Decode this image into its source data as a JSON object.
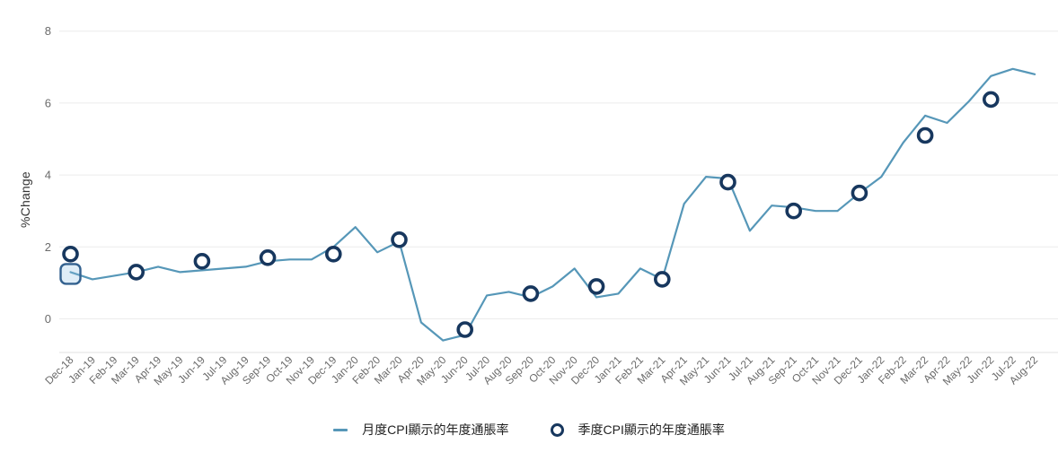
{
  "chart_data": {
    "type": "line",
    "title": "",
    "xlabel": "",
    "ylabel": "%Change",
    "yticks": [
      0,
      2,
      4,
      6,
      8
    ],
    "ylim": [
      -1.1,
      8.6
    ],
    "grid": "horizontal",
    "legend_position": "bottom-center",
    "categories": [
      "Dec-18",
      "Jan-19",
      "Feb-19",
      "Mar-19",
      "Apr-19",
      "May-19",
      "Jun-19",
      "Jul-19",
      "Aug-19",
      "Sep-19",
      "Oct-19",
      "Nov-19",
      "Dec-19",
      "Jan-20",
      "Feb-20",
      "Mar-20",
      "Apr-20",
      "May-20",
      "Jun-20",
      "Jul-20",
      "Aug-20",
      "Sep-20",
      "Oct-20",
      "Nov-20",
      "Dec-20",
      "Jan-21",
      "Feb-21",
      "Mar-21",
      "Apr-21",
      "May-21",
      "Jun-21",
      "Jul-21",
      "Aug-21",
      "Sep-21",
      "Oct-21",
      "Nov-21",
      "Dec-21",
      "Jan-22",
      "Feb-22",
      "Mar-22",
      "Apr-22",
      "May-22",
      "Jun-22",
      "Jul-22",
      "Aug-22"
    ],
    "series": [
      {
        "name": "月度CPI顯示的年度通脹率",
        "type": "line",
        "color": "#5697b8",
        "values": [
          1.3,
          1.1,
          1.2,
          1.3,
          1.45,
          1.3,
          1.35,
          1.4,
          1.45,
          1.6,
          1.65,
          1.65,
          2.0,
          2.55,
          1.85,
          2.15,
          -0.1,
          -0.6,
          -0.45,
          0.65,
          0.75,
          0.6,
          0.9,
          1.4,
          0.6,
          0.7,
          1.4,
          1.1,
          3.2,
          3.95,
          3.9,
          2.45,
          3.15,
          3.1,
          3.0,
          3.0,
          3.5,
          3.95,
          4.9,
          5.65,
          5.45,
          6.05,
          6.75,
          6.95,
          6.8
        ]
      },
      {
        "name": "季度CPI顯示的年度通脹率",
        "type": "scatter",
        "marker": "circle-outline",
        "color": "#17375e",
        "points": [
          {
            "x": "Dec-18",
            "y": 1.8
          },
          {
            "x": "Mar-19",
            "y": 1.3
          },
          {
            "x": "Jun-19",
            "y": 1.6
          },
          {
            "x": "Sep-19",
            "y": 1.7
          },
          {
            "x": "Dec-19",
            "y": 1.8
          },
          {
            "x": "Mar-20",
            "y": 2.2
          },
          {
            "x": "Jun-20",
            "y": -0.3
          },
          {
            "x": "Sep-20",
            "y": 0.7
          },
          {
            "x": "Dec-20",
            "y": 0.9
          },
          {
            "x": "Mar-21",
            "y": 1.1
          },
          {
            "x": "Jun-21",
            "y": 3.8
          },
          {
            "x": "Sep-21",
            "y": 3.0
          },
          {
            "x": "Dec-21",
            "y": 3.5
          },
          {
            "x": "Mar-22",
            "y": 5.1
          },
          {
            "x": "Jun-22",
            "y": 6.1
          }
        ]
      }
    ],
    "highlight_point": {
      "series": "月度CPI顯示的年度通脹率",
      "x": "Dec-18",
      "marker": "square-outline"
    }
  },
  "legend": {
    "items": [
      {
        "label": "月度CPI顯示的年度通脹率",
        "marker": "line"
      },
      {
        "label": "季度CPI顯示的年度通脹率",
        "marker": "circle-outline"
      }
    ]
  },
  "colors": {
    "background": "#ffffff",
    "line": "#5697b8",
    "marker_stroke": "#17375e",
    "grid": "#ececec",
    "axis_line": "#e0e0e0",
    "axis_text": "#6b6b6b",
    "ylabel_text": "#333333",
    "legend_text": "#222222",
    "highlight_stroke": "#33618f",
    "highlight_fill": "rgba(140,190,225,0.28)"
  }
}
